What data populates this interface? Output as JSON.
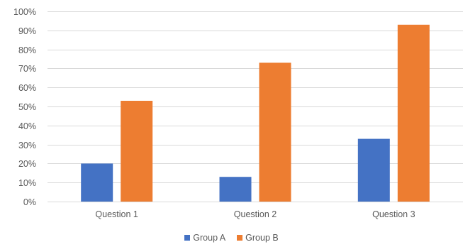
{
  "chart_data": {
    "type": "bar",
    "categories": [
      "Question 1",
      "Question 2",
      "Question 3"
    ],
    "series": [
      {
        "name": "Group A",
        "color": "#4472C4",
        "values": [
          0.2,
          0.13,
          0.33
        ]
      },
      {
        "name": "Group B",
        "color": "#ED7D31",
        "values": [
          0.53,
          0.73,
          0.93
        ]
      }
    ],
    "title": "",
    "xlabel": "",
    "ylabel": "",
    "ylim": [
      0,
      1
    ],
    "y_ticks": [
      "0%",
      "10%",
      "20%",
      "30%",
      "40%",
      "50%",
      "60%",
      "70%",
      "80%",
      "90%",
      "100%"
    ],
    "grid": true,
    "legend_position": "bottom-center",
    "gridline_color": "#d9d9d9",
    "label_color": "#595959"
  }
}
